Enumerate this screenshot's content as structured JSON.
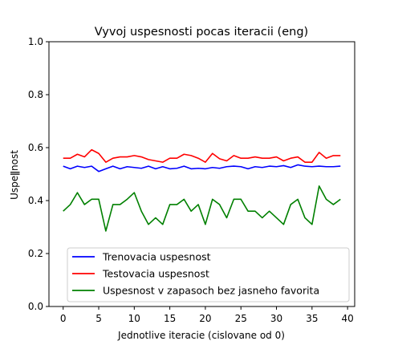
{
  "chart_data": {
    "type": "line",
    "title": "Vyvoj uspesnosti pocas iteracii (eng)",
    "xlabel": "Jednotlive iteracie (cislovane od 0)",
    "ylabel": "Uspeǁnost",
    "xlim": [
      -2,
      41
    ],
    "ylim": [
      0,
      1.0
    ],
    "x_ticks": [
      0,
      5,
      10,
      15,
      20,
      25,
      30,
      35,
      40
    ],
    "y_ticks": [
      0.0,
      0.2,
      0.4,
      0.6,
      0.8,
      1.0
    ],
    "y_tick_labels": [
      "0.0",
      "0.2",
      "0.4",
      "0.6",
      "0.8",
      "1.0"
    ],
    "legend_position": "lower-center",
    "x": [
      0,
      1,
      2,
      3,
      4,
      5,
      6,
      7,
      8,
      9,
      10,
      11,
      12,
      13,
      14,
      15,
      16,
      17,
      18,
      19,
      20,
      21,
      22,
      23,
      24,
      25,
      26,
      27,
      28,
      29,
      30,
      31,
      32,
      33,
      34,
      35,
      36,
      37,
      38,
      39
    ],
    "series": [
      {
        "name": "Trenovacia uspesnost",
        "color": "#0000ff",
        "values": [
          0.53,
          0.52,
          0.53,
          0.525,
          0.53,
          0.51,
          0.52,
          0.53,
          0.52,
          0.528,
          0.525,
          0.522,
          0.53,
          0.52,
          0.528,
          0.52,
          0.522,
          0.53,
          0.52,
          0.522,
          0.52,
          0.525,
          0.522,
          0.528,
          0.53,
          0.528,
          0.52,
          0.528,
          0.525,
          0.53,
          0.528,
          0.532,
          0.525,
          0.535,
          0.53,
          0.528,
          0.53,
          0.528,
          0.528,
          0.53
        ]
      },
      {
        "name": "Testovacia uspesnost",
        "color": "#ff0000",
        "values": [
          0.56,
          0.56,
          0.575,
          0.565,
          0.592,
          0.578,
          0.545,
          0.56,
          0.565,
          0.565,
          0.57,
          0.565,
          0.555,
          0.55,
          0.545,
          0.56,
          0.56,
          0.575,
          0.57,
          0.56,
          0.545,
          0.578,
          0.558,
          0.55,
          0.57,
          0.56,
          0.56,
          0.565,
          0.56,
          0.56,
          0.565,
          0.55,
          0.56,
          0.565,
          0.545,
          0.545,
          0.582,
          0.56,
          0.57,
          0.57
        ]
      },
      {
        "name": "Uspesnost v zapasoch bez jasneho favorita",
        "color": "#008000",
        "values": [
          0.36,
          0.385,
          0.43,
          0.385,
          0.405,
          0.405,
          0.285,
          0.385,
          0.385,
          0.405,
          0.43,
          0.36,
          0.31,
          0.335,
          0.31,
          0.385,
          0.385,
          0.405,
          0.36,
          0.385,
          0.31,
          0.405,
          0.385,
          0.335,
          0.405,
          0.405,
          0.36,
          0.36,
          0.335,
          0.36,
          0.335,
          0.31,
          0.385,
          0.405,
          0.335,
          0.31,
          0.455,
          0.405,
          0.385,
          0.405
        ]
      }
    ]
  }
}
